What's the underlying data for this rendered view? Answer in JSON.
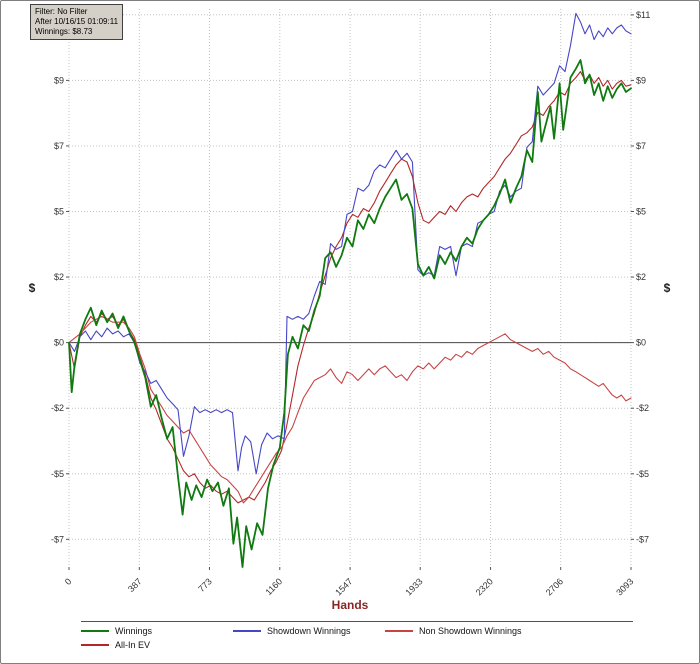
{
  "window": {
    "background": "#ffffff",
    "border_color": "#7f7f7f"
  },
  "tooltip": {
    "filter": "Filter: No Filter",
    "after": "After 10/16/15 01:09:11",
    "winnings": "Winnings: $8.73"
  },
  "chart_data": {
    "type": "line",
    "title": "",
    "xlabel": "Hands",
    "ylabel_left": "$",
    "ylabel_right": "$",
    "xlim": [
      0,
      3093
    ],
    "ylim": [
      -7.7,
      11.45
    ],
    "grid": true,
    "zero_line": 0,
    "x_ticks": [
      {
        "v": 0,
        "label": "0"
      },
      {
        "v": 387,
        "label": "387"
      },
      {
        "v": 773,
        "label": "773"
      },
      {
        "v": 1160,
        "label": "1160"
      },
      {
        "v": 1547,
        "label": "1547"
      },
      {
        "v": 1933,
        "label": "1933"
      },
      {
        "v": 2320,
        "label": "2320"
      },
      {
        "v": 2706,
        "label": "2706"
      },
      {
        "v": 3093,
        "label": "3093"
      }
    ],
    "y_ticks": [
      {
        "v": 11.25,
        "left": "$11",
        "right": "$11"
      },
      {
        "v": 9.0,
        "left": "$9",
        "right": "$9"
      },
      {
        "v": 6.75,
        "left": "$7",
        "right": "$7"
      },
      {
        "v": 4.5,
        "left": "$5",
        "right": "$5"
      },
      {
        "v": 2.25,
        "left": "$2",
        "right": "$2"
      },
      {
        "v": 0.0,
        "left": "$0",
        "right": "$0"
      },
      {
        "v": -2.25,
        "left": "-$2",
        "right": "-$2"
      },
      {
        "v": -4.5,
        "left": "-$5",
        "right": "-$5"
      },
      {
        "v": -6.75,
        "left": "-$7",
        "right": "-$7"
      }
    ],
    "colors": {
      "winnings": "#0f7a0f",
      "showdown": "#4646c8",
      "non_showdown": "#c84444",
      "allin_ev": "#b22828",
      "zero_line": "#4a4a4a",
      "grid": "#c3c3c3",
      "axis_label": "#8b2525"
    },
    "legend_rows": [
      [
        0,
        1,
        2
      ],
      [
        3
      ]
    ],
    "series": [
      {
        "name": "Winnings",
        "color": "#0f7a0f",
        "width": 1.8,
        "x": [
          0,
          15,
          30,
          60,
          90,
          120,
          150,
          180,
          210,
          240,
          270,
          300,
          330,
          360,
          390,
          420,
          450,
          480,
          510,
          540,
          570,
          600,
          625,
          645,
          675,
          700,
          730,
          760,
          790,
          820,
          850,
          880,
          905,
          925,
          955,
          975,
          1005,
          1035,
          1065,
          1095,
          1125,
          1160,
          1185,
          1205,
          1230,
          1260,
          1290,
          1320,
          1350,
          1380,
          1410,
          1440,
          1470,
          1500,
          1530,
          1560,
          1590,
          1620,
          1650,
          1680,
          1710,
          1740,
          1770,
          1800,
          1830,
          1860,
          1890,
          1920,
          1950,
          1980,
          2010,
          2040,
          2070,
          2100,
          2130,
          2160,
          2190,
          2220,
          2250,
          2280,
          2310,
          2340,
          2370,
          2400,
          2430,
          2460,
          2490,
          2520,
          2550,
          2580,
          2600,
          2620,
          2650,
          2670,
          2700,
          2720,
          2740,
          2760,
          2790,
          2815,
          2840,
          2865,
          2890,
          2915,
          2940,
          2965,
          2990,
          3015,
          3040,
          3065,
          3093
        ],
        "y": [
          0,
          -1.7,
          -0.8,
          0.3,
          0.8,
          1.2,
          0.6,
          1.1,
          0.7,
          1.0,
          0.5,
          0.9,
          0.4,
          0,
          -0.6,
          -1.2,
          -2.2,
          -1.8,
          -2.6,
          -3.3,
          -2.9,
          -4.6,
          -5.9,
          -4.8,
          -5.4,
          -4.9,
          -5.3,
          -4.7,
          -5.1,
          -4.8,
          -5.6,
          -5.0,
          -6.9,
          -6.0,
          -7.7,
          -6.3,
          -7.1,
          -6.2,
          -6.6,
          -5.0,
          -4.2,
          -3.6,
          -2.4,
          -0.4,
          0.2,
          -0.2,
          0.6,
          0.4,
          1.1,
          1.6,
          2.9,
          3.1,
          2.6,
          3.0,
          3.6,
          3.3,
          4.2,
          3.9,
          4.4,
          4.1,
          4.6,
          5.0,
          5.3,
          5.6,
          4.9,
          5.1,
          4.6,
          2.7,
          2.3,
          2.6,
          2.2,
          3.0,
          2.7,
          3.1,
          2.8,
          3.3,
          3.6,
          3.4,
          3.9,
          4.2,
          4.4,
          4.7,
          5.1,
          5.6,
          4.8,
          5.3,
          5.7,
          6.6,
          6.2,
          8.6,
          6.9,
          7.4,
          8.1,
          7.0,
          8.9,
          7.3,
          8.2,
          9.1,
          9.4,
          9.7,
          8.9,
          9.2,
          8.5,
          8.9,
          8.3,
          8.8,
          8.4,
          8.7,
          8.9,
          8.6,
          8.73
        ]
      },
      {
        "name": "Showdown Winnings",
        "color": "#4646c8",
        "width": 1.1,
        "x": [
          0,
          30,
          60,
          90,
          120,
          150,
          180,
          210,
          240,
          270,
          300,
          330,
          360,
          390,
          420,
          450,
          480,
          510,
          540,
          570,
          600,
          630,
          660,
          690,
          720,
          750,
          780,
          810,
          840,
          870,
          900,
          930,
          950,
          970,
          1000,
          1030,
          1060,
          1090,
          1120,
          1150,
          1185,
          1200,
          1230,
          1260,
          1290,
          1320,
          1350,
          1380,
          1410,
          1440,
          1470,
          1500,
          1530,
          1560,
          1590,
          1620,
          1650,
          1680,
          1710,
          1740,
          1770,
          1800,
          1830,
          1860,
          1890,
          1920,
          1950,
          1980,
          2010,
          2040,
          2070,
          2100,
          2130,
          2160,
          2190,
          2220,
          2250,
          2280,
          2310,
          2340,
          2370,
          2400,
          2430,
          2460,
          2490,
          2520,
          2550,
          2580,
          2610,
          2640,
          2670,
          2700,
          2730,
          2760,
          2790,
          2815,
          2840,
          2865,
          2890,
          2915,
          2940,
          2965,
          2990,
          3015,
          3040,
          3065,
          3093
        ],
        "y": [
          0,
          -0.3,
          0.2,
          0.4,
          0.1,
          0.4,
          0.2,
          0.5,
          0.3,
          0.4,
          0.2,
          0.3,
          0,
          -0.7,
          -1.0,
          -1.4,
          -1.3,
          -1.6,
          -1.9,
          -2.1,
          -2.3,
          -3.9,
          -3.2,
          -2.2,
          -2.4,
          -2.3,
          -2.4,
          -2.3,
          -2.4,
          -2.3,
          -2.4,
          -4.4,
          -3.6,
          -3.2,
          -3.4,
          -4.5,
          -3.5,
          -3.1,
          -3.3,
          -3.2,
          -3.3,
          0.9,
          0.8,
          0.9,
          0.8,
          1.0,
          1.6,
          2.1,
          2.0,
          3.4,
          3.2,
          3.3,
          4.4,
          4.5,
          5.3,
          5.2,
          5.4,
          5.9,
          6.1,
          6.0,
          6.3,
          6.6,
          6.3,
          6.5,
          6.2,
          2.5,
          2.3,
          2.4,
          2.3,
          3.3,
          3.2,
          3.3,
          2.3,
          3.3,
          3.4,
          3.3,
          4.1,
          4.2,
          4.4,
          4.5,
          5.2,
          5.4,
          5.0,
          5.2,
          5.3,
          6.7,
          6.9,
          8.8,
          8.5,
          8.7,
          8.9,
          9.5,
          9.3,
          10.2,
          11.3,
          11.0,
          10.6,
          10.9,
          10.4,
          10.7,
          10.5,
          10.8,
          10.6,
          10.8,
          10.9,
          10.7,
          10.6
        ]
      },
      {
        "name": "Non Showdown Winnings",
        "color": "#c84444",
        "width": 1.1,
        "x": [
          0,
          60,
          120,
          180,
          240,
          300,
          330,
          360,
          390,
          420,
          450,
          480,
          510,
          540,
          570,
          600,
          630,
          660,
          690,
          720,
          750,
          780,
          810,
          840,
          870,
          900,
          930,
          960,
          990,
          1020,
          1050,
          1080,
          1110,
          1140,
          1170,
          1200,
          1230,
          1260,
          1290,
          1320,
          1350,
          1380,
          1410,
          1440,
          1470,
          1500,
          1530,
          1560,
          1590,
          1620,
          1650,
          1680,
          1710,
          1740,
          1770,
          1800,
          1830,
          1860,
          1890,
          1920,
          1950,
          1980,
          2010,
          2040,
          2070,
          2100,
          2130,
          2160,
          2190,
          2220,
          2250,
          2280,
          2310,
          2340,
          2370,
          2400,
          2430,
          2460,
          2490,
          2520,
          2550,
          2580,
          2610,
          2640,
          2670,
          2700,
          2730,
          2760,
          2790,
          2815,
          2840,
          2865,
          2890,
          2915,
          2940,
          2965,
          2990,
          3015,
          3040,
          3065,
          3093
        ],
        "y": [
          0,
          0.3,
          0.7,
          0.9,
          0.7,
          0.7,
          0.5,
          0.2,
          -0.4,
          -0.9,
          -1.6,
          -1.9,
          -2.2,
          -2.5,
          -2.7,
          -2.9,
          -3.1,
          -3.0,
          -3.3,
          -3.6,
          -3.9,
          -4.2,
          -4.4,
          -4.6,
          -4.7,
          -4.9,
          -5.1,
          -5.5,
          -5.3,
          -5.0,
          -4.7,
          -4.4,
          -4.1,
          -3.8,
          -3.6,
          -3.2,
          -2.9,
          -2.4,
          -1.9,
          -1.6,
          -1.3,
          -1.2,
          -1.1,
          -0.9,
          -1.2,
          -1.4,
          -1.0,
          -1.1,
          -1.3,
          -1.1,
          -0.9,
          -1.1,
          -0.9,
          -0.8,
          -1.0,
          -1.2,
          -1.1,
          -1.3,
          -1.0,
          -0.8,
          -0.9,
          -0.7,
          -0.9,
          -0.7,
          -0.5,
          -0.6,
          -0.4,
          -0.5,
          -0.3,
          -0.4,
          -0.2,
          -0.1,
          0.0,
          0.1,
          0.2,
          0.3,
          0.1,
          0.0,
          -0.1,
          -0.2,
          -0.3,
          -0.2,
          -0.4,
          -0.3,
          -0.5,
          -0.6,
          -0.7,
          -0.9,
          -1.0,
          -1.1,
          -1.2,
          -1.3,
          -1.4,
          -1.5,
          -1.4,
          -1.6,
          -1.8,
          -1.9,
          -1.8,
          -2.0,
          -1.9
        ]
      },
      {
        "name": "All-In EV",
        "color": "#b22828",
        "width": 1.1,
        "x": [
          0,
          30,
          60,
          90,
          120,
          150,
          180,
          210,
          240,
          270,
          300,
          330,
          360,
          390,
          420,
          450,
          480,
          510,
          540,
          570,
          600,
          630,
          660,
          690,
          720,
          750,
          780,
          810,
          840,
          870,
          900,
          930,
          960,
          990,
          1020,
          1050,
          1080,
          1110,
          1140,
          1170,
          1200,
          1230,
          1260,
          1290,
          1320,
          1350,
          1380,
          1410,
          1440,
          1470,
          1500,
          1530,
          1560,
          1590,
          1620,
          1650,
          1680,
          1710,
          1740,
          1770,
          1800,
          1830,
          1860,
          1890,
          1920,
          1950,
          1980,
          2010,
          2040,
          2070,
          2100,
          2130,
          2160,
          2190,
          2220,
          2250,
          2280,
          2310,
          2340,
          2370,
          2400,
          2430,
          2460,
          2490,
          2520,
          2550,
          2580,
          2610,
          2640,
          2670,
          2700,
          2730,
          2760,
          2790,
          2815,
          2840,
          2865,
          2890,
          2915,
          2940,
          2965,
          2990,
          3015,
          3040,
          3065,
          3093
        ],
        "y": [
          0,
          -0.9,
          0.2,
          0.6,
          0.9,
          0.7,
          1.0,
          0.8,
          0.9,
          0.6,
          0.8,
          0.4,
          0.1,
          -0.5,
          -1.1,
          -1.9,
          -2.3,
          -2.8,
          -3.3,
          -3.6,
          -4.0,
          -4.4,
          -4.6,
          -4.5,
          -4.8,
          -5.0,
          -4.9,
          -5.1,
          -5.2,
          -5.1,
          -5.3,
          -5.5,
          -5.4,
          -5.3,
          -5.4,
          -5.1,
          -4.8,
          -4.4,
          -4.1,
          -3.7,
          -2.8,
          -1.8,
          -0.8,
          -0.1,
          0.5,
          1.0,
          1.7,
          2.3,
          2.9,
          3.3,
          3.6,
          4.1,
          4.4,
          4.3,
          4.6,
          4.5,
          4.8,
          5.2,
          5.5,
          5.8,
          6.1,
          6.3,
          6.2,
          5.7,
          4.8,
          4.2,
          4.1,
          4.3,
          4.5,
          4.4,
          4.7,
          4.5,
          4.8,
          5.0,
          5.1,
          5.0,
          5.3,
          5.5,
          5.7,
          6.0,
          6.3,
          6.5,
          6.8,
          7.1,
          7.2,
          7.4,
          7.9,
          7.8,
          8.1,
          8.3,
          8.6,
          8.5,
          8.9,
          9.1,
          9.3,
          9.0,
          9.2,
          8.9,
          9.1,
          8.8,
          9.0,
          8.7,
          8.9,
          9.0,
          8.8,
          8.85
        ]
      }
    ]
  }
}
